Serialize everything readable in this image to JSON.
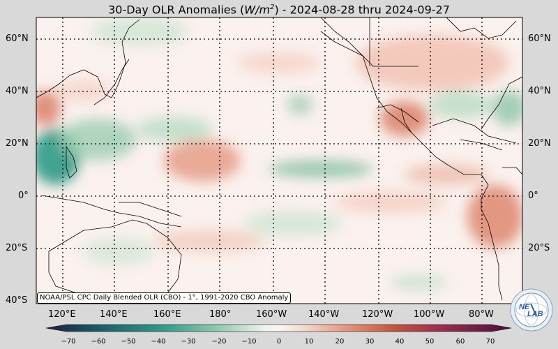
{
  "title": {
    "prefix": "30-Day OLR Anomalies (",
    "units": "W/m",
    "exp": "2",
    "suffix": ") - 2024-08-28 thru 2024-09-27"
  },
  "lat_labels": [
    "60°N",
    "40°N",
    "20°N",
    "0°",
    "20°S",
    "40°S"
  ],
  "lon_labels": [
    "120°E",
    "140°E",
    "160°E",
    "180°",
    "160°W",
    "140°W",
    "120°W",
    "100°W",
    "80°W"
  ],
  "colorbar_ticks": [
    "−70",
    "−60",
    "−50",
    "−40",
    "−30",
    "−20",
    "−10",
    "0",
    "10",
    "20",
    "30",
    "40",
    "50",
    "60",
    "70"
  ],
  "credit": "NOAA/PSL CPC Daily Blended OLR (CBO) - 1°, 1991-2020 CBO Anomaly",
  "logo_text": {
    "line1": "NE",
    "line2": "LAB"
  },
  "colors": {
    "negative_strong": "#0f2a4a",
    "negative_mid": "#1f8a7a",
    "negative_light": "#9fcfa8",
    "neutral": "#fbf3f0",
    "positive_light": "#f0c4b4",
    "positive_mid": "#d9785e",
    "positive_strong": "#5a0f3a"
  }
}
